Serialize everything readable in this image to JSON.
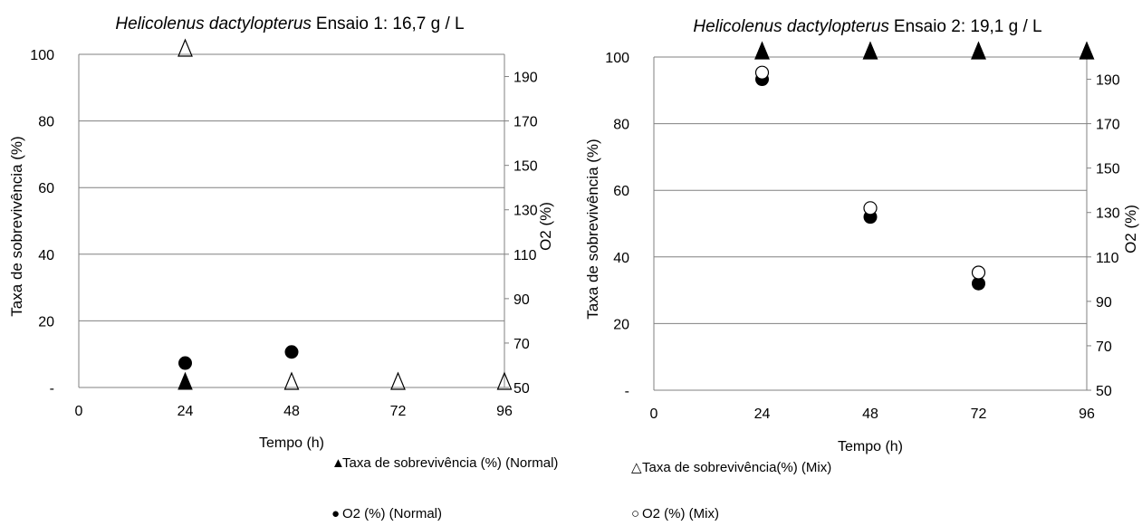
{
  "chart_data": [
    {
      "type": "scatter",
      "title_italic": "Helicolenus dactylopterus",
      "title_rest": "Ensaio 1: 16,7 g / L",
      "xlabel": "Tempo (h)",
      "ylabel": "Taxa de sobrevivência (%)",
      "y2label": "O2 (%)",
      "xlim": [
        0,
        96
      ],
      "ylim": [
        0,
        100
      ],
      "y2lim": [
        50,
        200
      ],
      "x_ticks": [
        "0",
        "24",
        "48",
        "72",
        "96"
      ],
      "y_ticks": [
        "-",
        "20",
        "40",
        "60",
        "80",
        "100"
      ],
      "y2_ticks": [
        "50",
        "70",
        "90",
        "110",
        "130",
        "150",
        "170",
        "190"
      ],
      "grid": true,
      "series": [
        {
          "name": "Taxa de sobrevivência (%) (Normal)",
          "axis": "left",
          "marker": "filled-triangle",
          "x": [
            24
          ],
          "y": [
            0
          ]
        },
        {
          "name": "Taxa de sobrevivência(%) (Mix)",
          "axis": "left",
          "marker": "open-triangle",
          "x": [
            24,
            48,
            72,
            96
          ],
          "y": [
            100,
            0,
            0,
            0
          ]
        },
        {
          "name": "O2 (%) (Normal)",
          "axis": "right",
          "marker": "filled-circle",
          "x": [
            24,
            48
          ],
          "y": [
            61,
            66
          ]
        }
      ]
    },
    {
      "type": "scatter",
      "title_italic": "Helicolenus dactylopterus",
      "title_rest": "Ensaio 2: 19,1 g / L",
      "xlabel": "Tempo (h)",
      "ylabel": "Taxa de sobrevivência (%)",
      "y2label": "O2 (%)",
      "xlim": [
        0,
        96
      ],
      "ylim": [
        0,
        100
      ],
      "y2lim": [
        50,
        200
      ],
      "x_ticks": [
        "0",
        "24",
        "48",
        "72",
        "96"
      ],
      "y_ticks": [
        "-",
        "20",
        "40",
        "60",
        "80",
        "100"
      ],
      "y2_ticks": [
        "50",
        "70",
        "90",
        "110",
        "130",
        "150",
        "170",
        "190"
      ],
      "grid": true,
      "series": [
        {
          "name": "Taxa de sobrevivência (%) (Normal)",
          "axis": "left",
          "marker": "filled-triangle",
          "x": [
            24,
            48,
            72,
            96
          ],
          "y": [
            100,
            100,
            100,
            100
          ]
        },
        {
          "name": "Taxa de sobrevivência(%) (Mix)",
          "axis": "left",
          "marker": "open-triangle",
          "x": [
            24,
            48,
            72,
            96
          ],
          "y": [
            100,
            100,
            100,
            100
          ]
        },
        {
          "name": "O2 (%) (Normal)",
          "axis": "right",
          "marker": "filled-circle",
          "x": [
            24,
            48,
            72
          ],
          "y": [
            190,
            128,
            98
          ]
        },
        {
          "name": "O2 (%) (Mix)",
          "axis": "right",
          "marker": "open-circle",
          "x": [
            24,
            48,
            72
          ],
          "y": [
            193,
            132,
            103
          ]
        }
      ]
    }
  ],
  "legend": [
    {
      "glyph": "▲",
      "label": "Taxa de sobrevivência (%) (Normal)"
    },
    {
      "glyph": "△",
      "label": "Taxa de sobrevivência(%) (Mix)"
    },
    {
      "glyph": "●",
      "label": "O2 (%) (Normal)"
    },
    {
      "glyph": "○",
      "label": "O2 (%) (Mix)"
    }
  ]
}
